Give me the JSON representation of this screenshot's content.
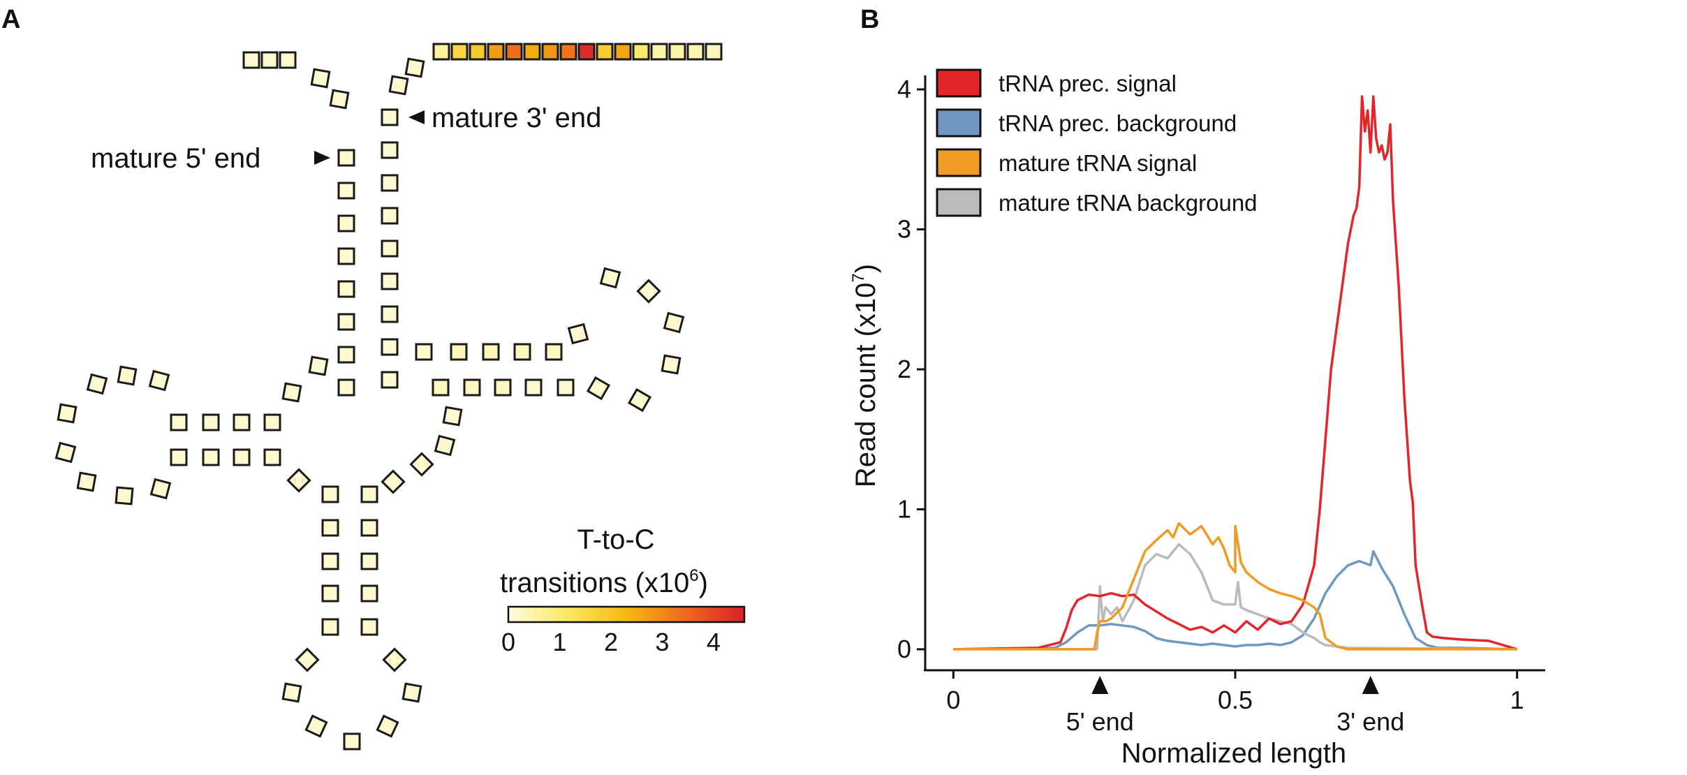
{
  "panel_labels": {
    "a": "A",
    "b": "B"
  },
  "panel_a": {
    "annotations": {
      "mature_5p": "mature 5' end",
      "mature_3p": "mature 3' end"
    },
    "colorbar": {
      "title_line1": "T-to-C",
      "title_line2_main": "transitions (x10",
      "title_line2_sup": "6",
      "title_line2_end": ")",
      "ticks": [
        "0",
        "1",
        "2",
        "3",
        "4"
      ],
      "max": 4.6,
      "colors": [
        "#fffbe0",
        "#fbe960",
        "#f6b810",
        "#ee6a1e",
        "#d9202a"
      ]
    },
    "cloverleaf": {
      "tail_values": [
        0.6,
        1.6,
        1.9,
        2.7,
        3.4,
        2.5,
        2.8,
        3.3,
        4.4,
        1.8,
        2.6,
        1.1,
        0.5,
        0.5,
        0.4,
        0.3
      ],
      "default_value": 0.15,
      "highlight_values": [
        0.35,
        0.35,
        0.3,
        0.25,
        0.3,
        0.25,
        0.3
      ]
    }
  },
  "chart_data": {
    "type": "line",
    "title": "",
    "xlabel": "Normalized length",
    "ylabel_main": "Read count (x10",
    "ylabel_sup": "7",
    "ylabel_end": ")",
    "xlim": [
      -0.05,
      1.05
    ],
    "ylim": [
      -0.15,
      4.1
    ],
    "x_ticks": [
      0,
      0.5,
      1
    ],
    "x_tick_labels": [
      "0",
      "0.5",
      "1"
    ],
    "y_ticks": [
      0,
      1,
      2,
      3,
      4
    ],
    "y_tick_labels": [
      "0",
      "1",
      "2",
      "3",
      "4"
    ],
    "markers": [
      {
        "x": 0.26,
        "label": "5' end"
      },
      {
        "x": 0.74,
        "label": "3' end"
      }
    ],
    "legend_position": "top-left",
    "series": [
      {
        "name": "tRNA prec. signal",
        "color": "#e3262b",
        "x": [
          0,
          0.15,
          0.19,
          0.2,
          0.21,
          0.22,
          0.24,
          0.26,
          0.28,
          0.3,
          0.32,
          0.34,
          0.36,
          0.38,
          0.4,
          0.42,
          0.44,
          0.46,
          0.48,
          0.5,
          0.52,
          0.54,
          0.56,
          0.58,
          0.6,
          0.62,
          0.64,
          0.65,
          0.66,
          0.67,
          0.68,
          0.69,
          0.7,
          0.71,
          0.715,
          0.72,
          0.725,
          0.73,
          0.735,
          0.74,
          0.745,
          0.75,
          0.755,
          0.76,
          0.765,
          0.77,
          0.775,
          0.78,
          0.79,
          0.8,
          0.81,
          0.815,
          0.82,
          0.83,
          0.84,
          0.85,
          0.87,
          0.9,
          0.95,
          1.0
        ],
        "y": [
          0,
          0.01,
          0.05,
          0.15,
          0.28,
          0.35,
          0.39,
          0.38,
          0.4,
          0.38,
          0.39,
          0.32,
          0.27,
          0.22,
          0.18,
          0.14,
          0.16,
          0.12,
          0.17,
          0.12,
          0.2,
          0.14,
          0.22,
          0.18,
          0.2,
          0.32,
          0.6,
          1.0,
          1.5,
          2.0,
          2.3,
          2.6,
          2.9,
          3.1,
          3.15,
          3.3,
          3.95,
          3.7,
          3.85,
          3.55,
          3.95,
          3.65,
          3.55,
          3.6,
          3.5,
          3.55,
          3.75,
          3.2,
          2.6,
          1.8,
          1.2,
          1.05,
          0.6,
          0.35,
          0.12,
          0.09,
          0.08,
          0.07,
          0.06,
          0.0
        ]
      },
      {
        "name": "tRNA prec. background",
        "color": "#6f98c0",
        "x": [
          0,
          0.18,
          0.2,
          0.22,
          0.24,
          0.26,
          0.28,
          0.3,
          0.32,
          0.34,
          0.36,
          0.38,
          0.4,
          0.42,
          0.44,
          0.46,
          0.48,
          0.5,
          0.52,
          0.54,
          0.56,
          0.58,
          0.6,
          0.62,
          0.64,
          0.66,
          0.68,
          0.7,
          0.72,
          0.74,
          0.745,
          0.76,
          0.78,
          0.8,
          0.82,
          0.84,
          0.86,
          0.9,
          1.0
        ],
        "y": [
          0,
          0.01,
          0.05,
          0.12,
          0.17,
          0.17,
          0.18,
          0.17,
          0.16,
          0.13,
          0.08,
          0.06,
          0.05,
          0.04,
          0.03,
          0.04,
          0.03,
          0.02,
          0.03,
          0.03,
          0.04,
          0.03,
          0.05,
          0.1,
          0.22,
          0.4,
          0.52,
          0.6,
          0.63,
          0.6,
          0.7,
          0.58,
          0.45,
          0.25,
          0.08,
          0.03,
          0.01,
          0.01,
          0.0
        ]
      },
      {
        "name": "mature tRNA signal",
        "color": "#f29a24",
        "x": [
          0,
          0.25,
          0.255,
          0.26,
          0.27,
          0.28,
          0.3,
          0.32,
          0.34,
          0.36,
          0.38,
          0.39,
          0.4,
          0.42,
          0.44,
          0.46,
          0.47,
          0.48,
          0.49,
          0.5,
          0.5,
          0.51,
          0.52,
          0.54,
          0.56,
          0.58,
          0.6,
          0.62,
          0.64,
          0.65,
          0.66,
          0.68,
          0.7,
          1.0
        ],
        "y": [
          0,
          0.0,
          0.12,
          0.2,
          0.2,
          0.22,
          0.3,
          0.5,
          0.7,
          0.78,
          0.85,
          0.8,
          0.9,
          0.82,
          0.88,
          0.75,
          0.8,
          0.72,
          0.6,
          0.55,
          0.88,
          0.62,
          0.55,
          0.48,
          0.43,
          0.4,
          0.38,
          0.35,
          0.3,
          0.25,
          0.08,
          0.02,
          0.0,
          0.0
        ]
      },
      {
        "name": "mature tRNA background",
        "color": "#bbbbbb",
        "x": [
          0,
          0.255,
          0.26,
          0.265,
          0.27,
          0.28,
          0.29,
          0.3,
          0.32,
          0.34,
          0.36,
          0.38,
          0.39,
          0.4,
          0.42,
          0.44,
          0.46,
          0.48,
          0.5,
          0.505,
          0.51,
          0.52,
          0.54,
          0.56,
          0.58,
          0.6,
          0.62,
          0.64,
          0.65,
          0.66,
          0.68,
          0.7,
          1.0
        ],
        "y": [
          0,
          0.0,
          0.45,
          0.2,
          0.3,
          0.25,
          0.3,
          0.2,
          0.35,
          0.6,
          0.68,
          0.65,
          0.7,
          0.75,
          0.68,
          0.55,
          0.35,
          0.32,
          0.32,
          0.48,
          0.3,
          0.28,
          0.25,
          0.22,
          0.2,
          0.18,
          0.12,
          0.08,
          0.05,
          0.03,
          0.02,
          0.01,
          0.0
        ]
      }
    ]
  }
}
